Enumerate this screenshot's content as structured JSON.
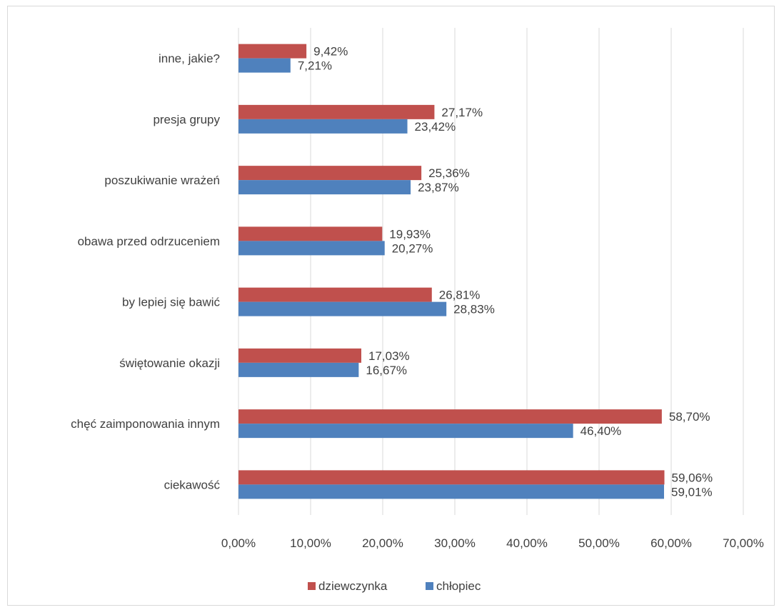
{
  "chart_data": {
    "type": "bar",
    "orientation": "horizontal",
    "categories": [
      "inne, jakie?",
      "presja grupy",
      "poszukiwanie wrażeń",
      "obawa przed odrzuceniem",
      "by lepiej się bawić",
      "świętowanie okazji",
      "chęć zaimponowania innym",
      "ciekawość"
    ],
    "series": [
      {
        "name": "dziewczynka",
        "color": "#c0504d",
        "values": [
          9.42,
          27.17,
          25.36,
          19.93,
          26.81,
          17.03,
          58.7,
          59.06
        ],
        "labels": [
          "9,42%",
          "27,17%",
          "25,36%",
          "19,93%",
          "26,81%",
          "17,03%",
          "58,70%",
          "59,06%"
        ]
      },
      {
        "name": "chłopiec",
        "color": "#4f81bd",
        "values": [
          7.21,
          23.42,
          23.87,
          20.27,
          28.83,
          16.67,
          46.4,
          59.01
        ],
        "labels": [
          "7,21%",
          "23,42%",
          "23,87%",
          "20,27%",
          "28,83%",
          "16,67%",
          "46,40%",
          "59,01%"
        ]
      }
    ],
    "xlim": [
      0,
      70
    ],
    "x_ticks": [
      0,
      10,
      20,
      30,
      40,
      50,
      60,
      70
    ],
    "x_tick_labels": [
      "0,00%",
      "10,00%",
      "20,00%",
      "30,00%",
      "40,00%",
      "50,00%",
      "60,00%",
      "70,00%"
    ],
    "grid": true,
    "legend_position": "bottom",
    "title": "",
    "xlabel": "",
    "ylabel": ""
  }
}
